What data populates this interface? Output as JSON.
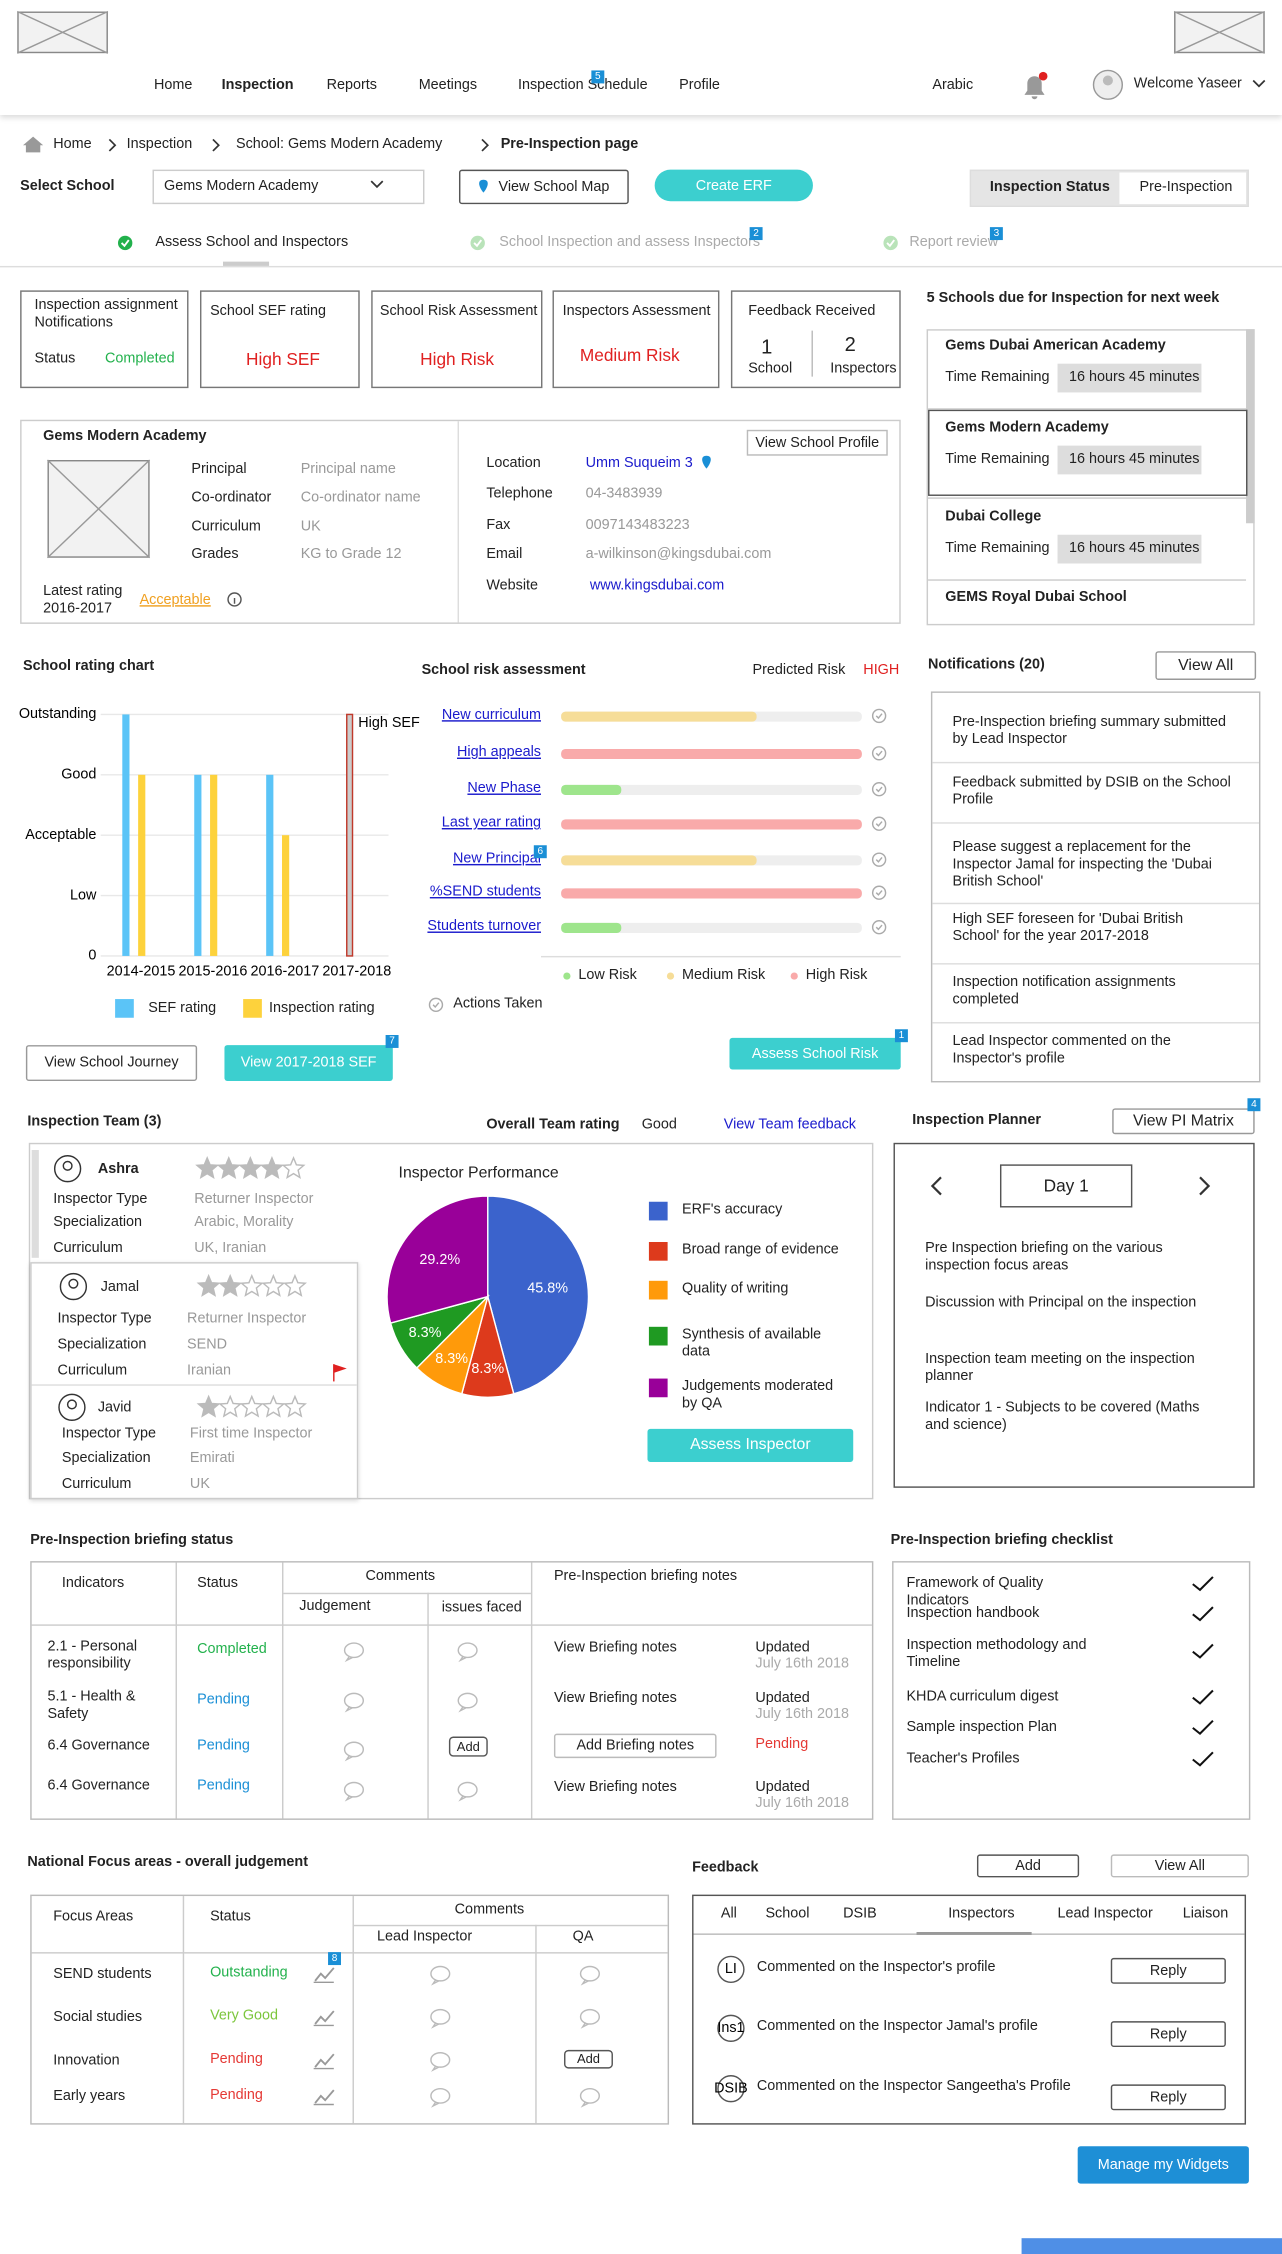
{
  "header": {
    "nav": [
      "Home",
      "Inspection",
      "Reports",
      "Meetings",
      "Inspection Schedule",
      "Profile"
    ],
    "nav_badge": "5",
    "language": "Arabic",
    "welcome": "Welcome Yaseer"
  },
  "breadcrumb": [
    "Home",
    "Inspection",
    "School: Gems Modern Academy",
    "Pre-Inspection page"
  ],
  "toolbar": {
    "select_label": "Select School",
    "selected": "Gems Modern Academy",
    "map_button": "View School Map",
    "erf_button": "Create ERF",
    "status_label": "Inspection Status",
    "status_value": "Pre-Inspection"
  },
  "steps": [
    {
      "label": "Assess School and Inspectors"
    },
    {
      "label": "School Inspection and assess Inspectors",
      "badge": "2"
    },
    {
      "label": "Report review",
      "badge": "3"
    }
  ],
  "cards": {
    "assignment": {
      "title": "Inspection assignment Notifications",
      "status_label": "Status",
      "status": "Completed"
    },
    "sef": {
      "title": "School SEF rating",
      "value": "High SEF"
    },
    "risk": {
      "title": "School Risk Assessment",
      "value": "High Risk"
    },
    "inspectors": {
      "title": "Inspectors Assessment",
      "value": "Medium Risk"
    },
    "feedback": {
      "title": "Feedback Received",
      "school_count": 1,
      "school_label": "School",
      "inspector_count": 2,
      "inspector_label": "Inspectors"
    }
  },
  "school": {
    "name": "Gems Modern Academy",
    "profile_button": "View School Profile",
    "details": [
      [
        "Principal",
        "Principal name"
      ],
      [
        "Co-ordinator",
        "Co-ordinator name"
      ],
      [
        "Curriculum",
        "UK"
      ],
      [
        "Grades",
        "KG to Grade 12"
      ]
    ],
    "latest_rating_label": "Latest rating",
    "latest_rating_year": "2016-2017",
    "latest_rating": "Acceptable",
    "contacts": [
      [
        "Location",
        "Umm Suqueim 3"
      ],
      [
        "Telephone",
        "04-3483939"
      ],
      [
        "Fax",
        "0097143483223"
      ],
      [
        "Email",
        "a-wilkinson@kingsdubai.com"
      ],
      [
        "Website",
        "www.kingsdubai.com"
      ]
    ]
  },
  "due": {
    "title": "5 Schools due for Inspection for next week",
    "schools": [
      {
        "name": "Gems Dubai American Academy",
        "time_label": "Time Remaining",
        "remaining": "16 hours 45 minutes"
      },
      {
        "name": "Gems Modern Academy",
        "time_label": "Time Remaining",
        "remaining": "16 hours 45 minutes"
      },
      {
        "name": "Dubai College",
        "time_label": "Time Remaining",
        "remaining": "16 hours 45 minutes"
      },
      {
        "name": "GEMS Royal Dubai School"
      }
    ]
  },
  "chart_data": [
    {
      "type": "bar",
      "title": "School rating chart",
      "categories": [
        "2014-2015",
        "2015-2016",
        "2016-2017",
        "2017-2018"
      ],
      "series": [
        {
          "name": "SEF rating",
          "color": "#5bc4f7",
          "values": [
            4,
            3,
            3,
            4
          ]
        },
        {
          "name": "Inspection rating",
          "color": "#fdd23c",
          "values": [
            3,
            3,
            2,
            null
          ]
        }
      ],
      "ylim": [
        0,
        4
      ],
      "yticks": [
        0,
        {
          "value": 1,
          "label": "Low"
        },
        {
          "value": 2,
          "label": "Acceptable"
        },
        {
          "value": 3,
          "label": "Good"
        },
        {
          "value": 4,
          "label": "Outstanding"
        }
      ],
      "grid": true,
      "annotation": {
        "text": "High SEF",
        "category": "2017-2018",
        "color": "#c0392b"
      }
    },
    {
      "type": "barh",
      "title": "School risk assessment",
      "predicted_label": "Predicted Risk",
      "predicted_value": "HIGH",
      "categories": [
        "New curriculum",
        "High appeals",
        "New Phase",
        "Last year rating",
        "New Principal",
        "%SEND students",
        "Students turnover"
      ],
      "values": [
        65,
        100,
        20,
        100,
        65,
        100,
        20
      ],
      "levels": [
        "Medium Risk",
        "High Risk",
        "Low Risk",
        "High Risk",
        "Medium Risk",
        "High Risk",
        "Low Risk"
      ],
      "xlim": [
        0,
        100
      ],
      "legend": [
        {
          "name": "Low Risk",
          "color": "#9ee58c"
        },
        {
          "name": "Medium Risk",
          "color": "#f6dd98"
        },
        {
          "name": "High Risk",
          "color": "#f9aaaa"
        }
      ],
      "badge": {
        "text": "6",
        "category": "New Principal"
      },
      "note": "Actions Taken"
    },
    {
      "type": "pie",
      "title": "Inspector Performance",
      "categories": [
        "ERF's accuracy",
        "Broad range of evidence",
        "Quality of writing",
        "Synthesis of available data",
        "Judgements moderated by QA"
      ],
      "values": [
        45.8,
        8.3,
        8.3,
        8.3,
        29.2
      ],
      "value_labels": [
        "45.8%",
        "8.3%",
        "8.3%",
        "8.3%",
        "29.2%"
      ],
      "colors": [
        "#3b63cc",
        "#dd3a1c",
        "#ff9a0a",
        "#1f9a22",
        "#990099"
      ]
    }
  ],
  "school_buttons": {
    "journey": "View School Journey",
    "sef": "View 2017-2018 SEF",
    "sef_badge": "7",
    "assess_risk": "Assess School Risk",
    "assess_risk_badge": "1"
  },
  "notifications": {
    "title": "Notifications (20)",
    "view_all": "View All",
    "items": [
      "Pre-Inspection briefing summary submitted by Lead Inspector",
      "Feedback submitted by DSIB on the School Profile",
      "Please suggest a replacement for the Inspector Jamal for inspecting the 'Dubai British School'",
      "High SEF foreseen for 'Dubai British School' for the year 2017-2018",
      "Inspection notification assignments completed",
      "Lead Inspector commented on the Inspector's profile"
    ]
  },
  "team": {
    "title": "Inspection Team (3)",
    "overall_label": "Overall Team rating",
    "overall": "Good",
    "feedback_link": "View Team feedback",
    "rating_scale": 5,
    "assess_button": "Assess Inspector",
    "inspectors": [
      {
        "name": "Ashra",
        "rating": 4,
        "type_label": "Inspector Type",
        "type": "Returner Inspector",
        "spec_label": "Specialization",
        "specialization": "Arabic, Morality",
        "curriculum_label": "Curriculum",
        "curriculum": "UK, Iranian"
      },
      {
        "name": "Jamal",
        "rating": 2,
        "type_label": "Inspector Type",
        "type": "Returner Inspector",
        "spec_label": "Specialization",
        "specialization": "SEND",
        "curriculum_label": "Curriculum",
        "curriculum": "Iranian"
      },
      {
        "name": "Javid",
        "rating": 1,
        "type_label": "Inspector Type",
        "type": "First time Inspector",
        "spec_label": "Specialization",
        "specialization": "Emirati",
        "curriculum_label": "Curriculum",
        "curriculum": "UK"
      }
    ]
  },
  "planner": {
    "title": "Inspection Planner",
    "matrix_button": "View PI Matrix",
    "matrix_badge": "4",
    "day": "Day 1",
    "items": [
      "Pre Inspection briefing on the  various inspection focus areas",
      "Discussion with Principal on the inspection",
      "Inspection team meeting on the inspection planner",
      "Indicator 1 - Subjects to be covered (Maths and science)"
    ]
  },
  "briefing": {
    "title": "Pre-Inspection briefing status",
    "headers": {
      "indicators": "Indicators",
      "status": "Status",
      "comments": "Comments",
      "judgement": "Judgement",
      "issues": "issues faced",
      "notes": "Pre-Inspection briefing notes"
    },
    "status_colors": {
      "Completed": "#22b14c",
      "Pending": "#1a8fd6"
    },
    "rows": [
      {
        "indicator": "2.1 - Personal responsibility",
        "status": "Completed",
        "notes": "View Briefing notes",
        "updated": "Updated",
        "date": "July 16th 2018"
      },
      {
        "indicator": "5.1 - Health & Safety",
        "status": "Pending",
        "notes": "View Briefing notes",
        "updated": "Updated",
        "date": "July 16th 2018"
      },
      {
        "indicator": "6.4 Governance",
        "status": "Pending",
        "issues": "Add",
        "note_button": "Add Briefing notes",
        "note_status": "Pending",
        "note_status_color": "#e53935"
      },
      {
        "indicator": "6.4 Governance",
        "status": "Pending",
        "notes": "View Briefing notes",
        "updated": "Updated",
        "date": "July 16th 2018"
      }
    ]
  },
  "checklist": {
    "title": "Pre-Inspection briefing checklist",
    "items": [
      "Framework of Quality Indicators",
      "Inspection handbook",
      "Inspection methodology and Timeline",
      "KHDA curriculum digest",
      "Sample inspection Plan",
      "Teacher's Profiles"
    ]
  },
  "focus": {
    "title": "National Focus areas - overall judgement",
    "headers": {
      "areas": "Focus Areas",
      "status": "Status",
      "comments": "Comments",
      "lead": "Lead Inspector",
      "qa": "QA"
    },
    "badge": "8",
    "status_colors": {
      "Outstanding": "#22b14c",
      "Very Good": "#7cc63c",
      "Pending": "#e53935"
    },
    "rows": [
      {
        "area": "SEND students",
        "status": "Outstanding"
      },
      {
        "area": "Social studies",
        "status": "Very Good"
      },
      {
        "area": "Innovation",
        "status": "Pending",
        "qa": "Add"
      },
      {
        "area": "Early years",
        "status": "Pending"
      }
    ]
  },
  "feedback": {
    "title": "Feedback",
    "add": "Add",
    "view_all": "View All",
    "tabs": [
      "All",
      "School",
      "DSIB",
      "Inspectors",
      "Lead Inspector",
      "Liaison"
    ],
    "items": [
      {
        "avatar": "LI",
        "text": "Commented on the Inspector's profile",
        "reply": "Reply"
      },
      {
        "avatar": "Ins1",
        "text": "Commented on the Inspector Jamal's profile",
        "reply": "Reply"
      },
      {
        "avatar": "DSIB",
        "text": "Commented on the Inspector Sangeetha's Profile",
        "reply": "Reply"
      }
    ]
  },
  "widgets_button": "Manage my Widgets"
}
